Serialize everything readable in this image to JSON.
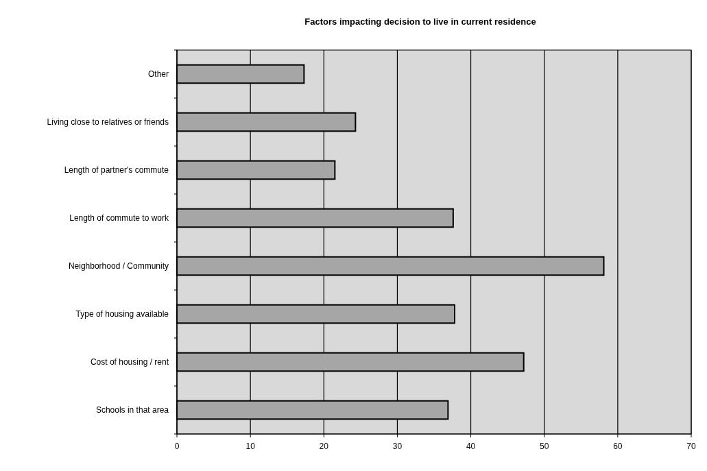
{
  "chart_data": {
    "type": "bar",
    "orientation": "horizontal",
    "title": "Factors impacting decision to live in current residence",
    "categories": [
      "Other",
      "Living close to relatives or friends",
      "Length of partner's commute",
      "Length of commute to work",
      "Neighborhood / Community",
      "Type of housing available",
      "Cost of housing / rent",
      "Schools in that area"
    ],
    "values": [
      17.3,
      24.3,
      21.5,
      37.6,
      58.1,
      37.8,
      47.2,
      36.9
    ],
    "color": "#a6a6a6",
    "xlim": [
      0,
      70
    ],
    "xticks": [
      0,
      10,
      20,
      30,
      40,
      50,
      60,
      70
    ],
    "grid": "x"
  }
}
